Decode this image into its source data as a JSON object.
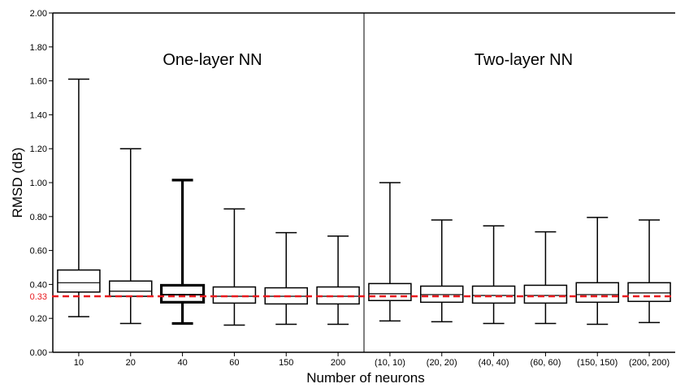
{
  "chart_data": {
    "type": "box",
    "xlabel": "Number of neurons",
    "ylabel": "RMSD (dB)",
    "ylim": [
      0,
      2.0
    ],
    "yticks": [
      "0.00",
      "0.20",
      "0.40",
      "0.60",
      "0.80",
      "1.00",
      "1.20",
      "1.40",
      "1.60",
      "1.80",
      "2.00"
    ],
    "reference_line": {
      "value": 0.33,
      "label": "0.33",
      "color": "#e8191e",
      "style": "dashed"
    },
    "groups": [
      {
        "label": "One-layer NN"
      },
      {
        "label": "Two-layer NN"
      }
    ],
    "categories": [
      "10",
      "20",
      "40",
      "60",
      "150",
      "200",
      "(10, 10)",
      "(20, 20)",
      "(40, 40)",
      "(60, 60)",
      "(150, 150)",
      "(200, 200)"
    ],
    "boxes": [
      {
        "min": 0.21,
        "q1": 0.355,
        "median": 0.41,
        "q3": 0.485,
        "max": 1.61,
        "highlight": false
      },
      {
        "min": 0.17,
        "q1": 0.33,
        "median": 0.36,
        "q3": 0.42,
        "max": 1.2,
        "highlight": false
      },
      {
        "min": 0.17,
        "q1": 0.295,
        "median": 0.34,
        "q3": 0.395,
        "max": 1.015,
        "highlight": true
      },
      {
        "min": 0.16,
        "q1": 0.29,
        "median": 0.33,
        "q3": 0.385,
        "max": 0.845,
        "highlight": false
      },
      {
        "min": 0.165,
        "q1": 0.285,
        "median": 0.33,
        "q3": 0.38,
        "max": 0.705,
        "highlight": false
      },
      {
        "min": 0.165,
        "q1": 0.285,
        "median": 0.33,
        "q3": 0.385,
        "max": 0.685,
        "highlight": false
      },
      {
        "min": 0.185,
        "q1": 0.305,
        "median": 0.345,
        "q3": 0.405,
        "max": 1.0,
        "highlight": false
      },
      {
        "min": 0.18,
        "q1": 0.295,
        "median": 0.34,
        "q3": 0.39,
        "max": 0.78,
        "highlight": false
      },
      {
        "min": 0.17,
        "q1": 0.29,
        "median": 0.335,
        "q3": 0.39,
        "max": 0.745,
        "highlight": false
      },
      {
        "min": 0.17,
        "q1": 0.29,
        "median": 0.335,
        "q3": 0.395,
        "max": 0.71,
        "highlight": false
      },
      {
        "min": 0.165,
        "q1": 0.295,
        "median": 0.34,
        "q3": 0.41,
        "max": 0.795,
        "highlight": false
      },
      {
        "min": 0.175,
        "q1": 0.3,
        "median": 0.35,
        "q3": 0.41,
        "max": 0.78,
        "highlight": false
      }
    ]
  }
}
